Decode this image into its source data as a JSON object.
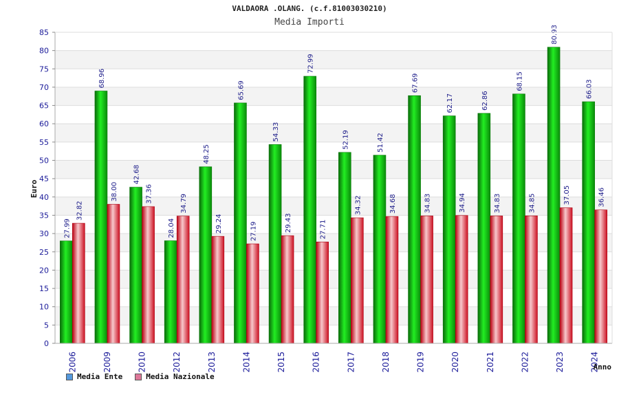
{
  "chart_data": {
    "type": "bar",
    "title": "VALDAORA .OLANG. (c.f.81003030210)",
    "subtitle": "Media Importi",
    "xlabel": "Anno",
    "ylabel": "Euro",
    "ylim": [
      0,
      85
    ],
    "yticks": [
      0,
      5,
      10,
      15,
      20,
      25,
      30,
      35,
      40,
      45,
      50,
      55,
      60,
      65,
      70,
      75,
      80,
      85
    ],
    "categories": [
      "2006",
      "2009",
      "2010",
      "2012",
      "2013",
      "2014",
      "2015",
      "2016",
      "2017",
      "2018",
      "2019",
      "2020",
      "2021",
      "2022",
      "2023",
      "2024"
    ],
    "series": [
      {
        "name": "Media Ente",
        "legend_color": "#5599dd",
        "color": "#11aa11",
        "values": [
          27.99,
          68.96,
          42.68,
          28.04,
          48.25,
          65.69,
          54.33,
          72.99,
          52.19,
          51.42,
          67.69,
          62.17,
          62.86,
          68.15,
          80.93,
          66.03
        ],
        "labels": [
          "27.99",
          "68.96",
          "42.68",
          "28.04",
          "48.25",
          "65.69",
          "54.33",
          "72.99",
          "52.19",
          "51.42",
          "67.69",
          "62.17",
          "62.86",
          "68.15",
          "80.93",
          "66.03"
        ]
      },
      {
        "name": "Media Nazionale",
        "legend_color": "#dd7799",
        "color": "#dd1122",
        "values": [
          32.82,
          38.0,
          37.36,
          34.79,
          29.24,
          27.19,
          29.43,
          27.71,
          34.32,
          34.68,
          34.83,
          34.94,
          34.83,
          34.85,
          37.05,
          36.46
        ],
        "labels": [
          "32.82",
          "38.00",
          "37.36",
          "34.79",
          "29.24",
          "27.19",
          "29.43",
          "27.71",
          "34.32",
          "34.68",
          "34.83",
          "34.94",
          "34.83",
          "34.85",
          "37.05",
          "36.46"
        ]
      }
    ],
    "grid": true,
    "legend": "bottom-left"
  }
}
